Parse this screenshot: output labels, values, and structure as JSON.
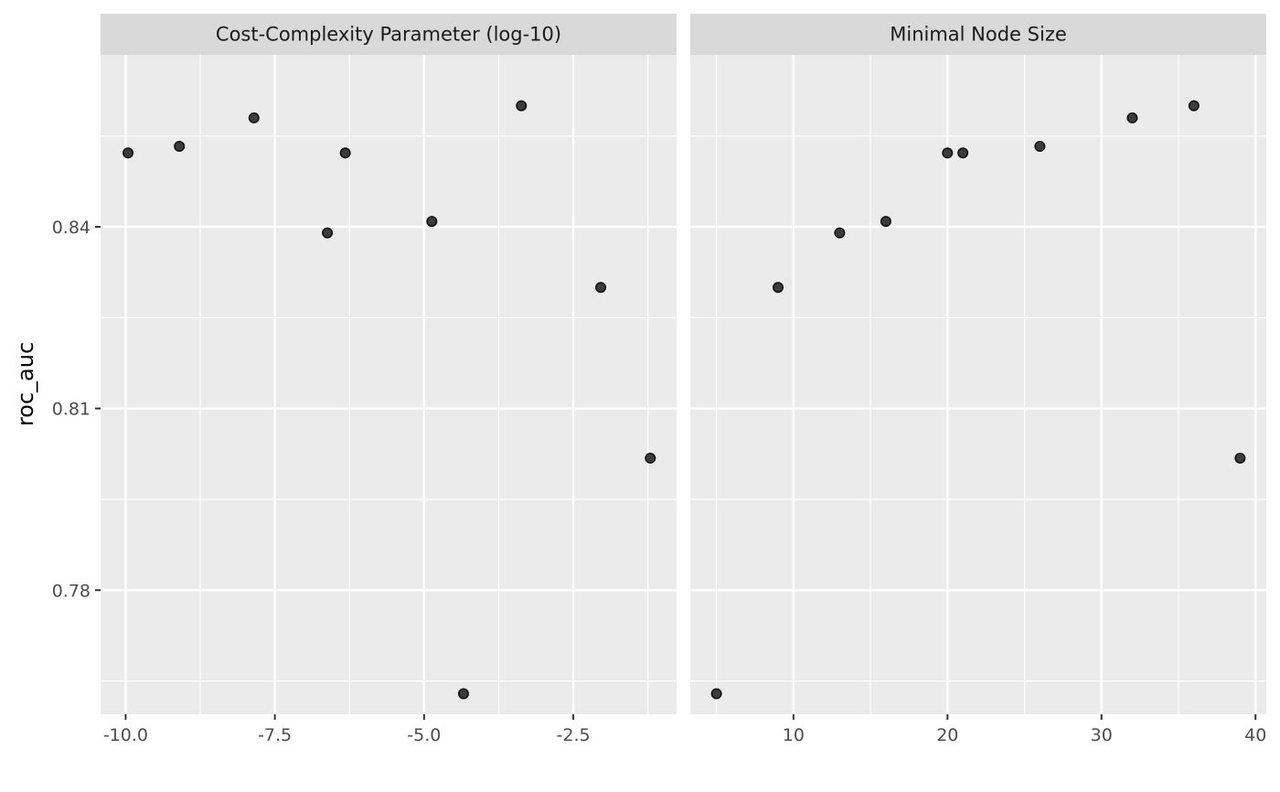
{
  "chart_data": {
    "type": "scatter",
    "ylabel": "roc_auc",
    "xlabel": "",
    "ylim": [
      0.7595,
      0.8684
    ],
    "y_ticks": [
      0.78,
      0.81,
      0.84
    ],
    "y_tick_labels": [
      "0.78",
      "0.81",
      "0.84"
    ],
    "y_minor": [
      0.765,
      0.795,
      0.825,
      0.855
    ],
    "grid": true,
    "point_color": "#333333",
    "panel_bg": "#ebebeb",
    "strip_bg": "#d9d9d9",
    "facets": [
      {
        "strip_label": "Cost-Complexity Parameter (log-10)",
        "xlim": [
          -10.42,
          -0.77
        ],
        "x_ticks": [
          -10.0,
          -7.5,
          -5.0,
          -2.5
        ],
        "x_tick_labels": [
          "-10.0",
          "-7.5",
          "-5.0",
          "-2.5"
        ],
        "x_minor": [
          -8.75,
          -6.25,
          -3.75,
          -1.25
        ],
        "points": [
          {
            "x": -9.96,
            "y": 0.8522
          },
          {
            "x": -9.1,
            "y": 0.8533
          },
          {
            "x": -7.85,
            "y": 0.858
          },
          {
            "x": -6.62,
            "y": 0.839
          },
          {
            "x": -6.32,
            "y": 0.8522
          },
          {
            "x": -4.87,
            "y": 0.8409
          },
          {
            "x": -4.34,
            "y": 0.7629
          },
          {
            "x": -3.37,
            "y": 0.86
          },
          {
            "x": -2.04,
            "y": 0.83
          },
          {
            "x": -1.21,
            "y": 0.8018
          }
        ]
      },
      {
        "strip_label": "Minimal Node Size",
        "xlim": [
          3.3,
          40.7
        ],
        "x_ticks": [
          10,
          20,
          30,
          40
        ],
        "x_tick_labels": [
          "10",
          "20",
          "30",
          "40"
        ],
        "x_minor": [
          5,
          15,
          25,
          35
        ],
        "points": [
          {
            "x": 5,
            "y": 0.7629
          },
          {
            "x": 9,
            "y": 0.83
          },
          {
            "x": 13,
            "y": 0.839
          },
          {
            "x": 16,
            "y": 0.8409
          },
          {
            "x": 20,
            "y": 0.8522
          },
          {
            "x": 21,
            "y": 0.8522
          },
          {
            "x": 26,
            "y": 0.8533
          },
          {
            "x": 32,
            "y": 0.858
          },
          {
            "x": 36,
            "y": 0.86
          },
          {
            "x": 39,
            "y": 0.8018
          }
        ]
      }
    ]
  }
}
